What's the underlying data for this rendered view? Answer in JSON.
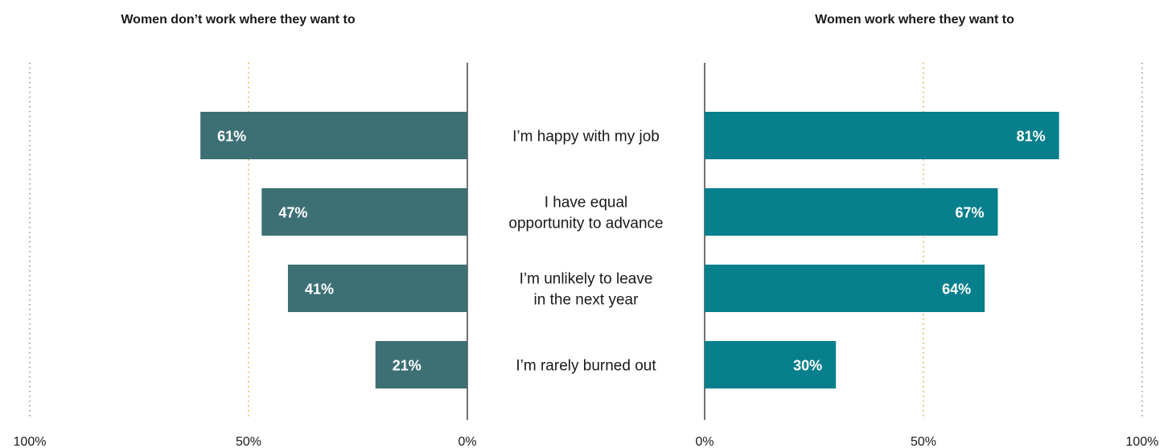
{
  "chart_data": {
    "type": "bar",
    "orientation": "horizontal-diverging",
    "categories": [
      "I’m happy with my job",
      "I have equal opportunity to advance",
      "I’m unlikely to leave in the next year",
      "I’m rarely burned out"
    ],
    "category_lines": [
      [
        "I’m happy with my job"
      ],
      [
        "I have equal",
        "opportunity to advance"
      ],
      [
        "I’m unlikely to leave",
        "in the next year"
      ],
      [
        "I’m rarely burned out"
      ]
    ],
    "series": [
      {
        "name": "Women don’t work where they want to",
        "values": [
          61,
          47,
          41,
          21
        ],
        "labels": [
          "61%",
          "47%",
          "41%",
          "21%"
        ],
        "color": "#3d7075"
      },
      {
        "name": "Women work where they want to",
        "values": [
          81,
          67,
          64,
          30
        ],
        "labels": [
          "81%",
          "67%",
          "64%",
          "30%"
        ],
        "color": "#087f8c"
      }
    ],
    "xlim": [
      0,
      100
    ],
    "ticks": [
      0,
      50,
      100
    ],
    "tick_labels": [
      "0%",
      "50%",
      "100%"
    ],
    "axis_line_color": "#444444",
    "gridline_50_color": "#e8a23a",
    "gridline_100_color": "#8a8a8a"
  }
}
